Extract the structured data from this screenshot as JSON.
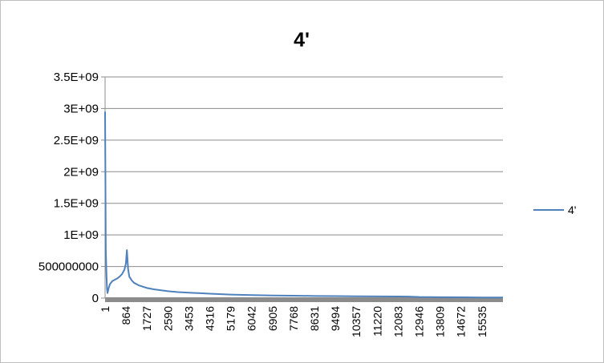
{
  "chart_data": {
    "type": "line",
    "title": "4'",
    "xlabel": "",
    "ylabel": "",
    "ylim": [
      0,
      3500000000
    ],
    "yticks": [
      "0",
      "500000000",
      "1E+09",
      "1.5E+09",
      "2E+09",
      "2.5E+09",
      "3E+09",
      "3.5E+09"
    ],
    "ytick_values": [
      0,
      500000000,
      1000000000,
      1500000000,
      2000000000,
      2500000000,
      3000000000,
      3500000000
    ],
    "xlim": [
      1,
      16400
    ],
    "xticks": [
      "1",
      "864",
      "1727",
      "2590",
      "3453",
      "4316",
      "5179",
      "6042",
      "6905",
      "7768",
      "8631",
      "9494",
      "10357",
      "11220",
      "12083",
      "12946",
      "13809",
      "14672",
      "15535"
    ],
    "xtick_values": [
      1,
      864,
      1727,
      2590,
      3453,
      4316,
      5179,
      6042,
      6905,
      7768,
      8631,
      9494,
      10357,
      11220,
      12083,
      12946,
      13809,
      14672,
      15535
    ],
    "grid": true,
    "legend": "right",
    "series": [
      {
        "name": "4'",
        "color": "#4f81bd",
        "x": [
          1,
          30,
          60,
          80,
          100,
          120,
          150,
          200,
          300,
          400,
          500,
          600,
          700,
          800,
          860,
          900,
          950,
          1000,
          1100,
          1200,
          1400,
          1727,
          2000,
          2590,
          3000,
          3453,
          4316,
          5179,
          6042,
          6905,
          7768,
          8631,
          9494,
          10357,
          11220,
          12083,
          12500,
          12946,
          13809,
          14672,
          15535,
          16400
        ],
        "y": [
          2950000000,
          760000000,
          360000000,
          150000000,
          80000000,
          110000000,
          160000000,
          220000000,
          270000000,
          290000000,
          310000000,
          340000000,
          380000000,
          450000000,
          550000000,
          760000000,
          460000000,
          340000000,
          280000000,
          240000000,
          200000000,
          160000000,
          140000000,
          110000000,
          95000000,
          85000000,
          70000000,
          55000000,
          47000000,
          42000000,
          38000000,
          34000000,
          31000000,
          29000000,
          27000000,
          25000000,
          24000000,
          18000000,
          15000000,
          12000000,
          10000000,
          9000000
        ]
      }
    ]
  }
}
